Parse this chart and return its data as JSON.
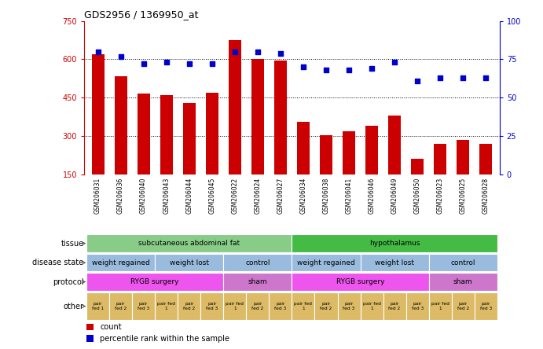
{
  "title": "GDS2956 / 1369950_at",
  "samples": [
    "GSM206031",
    "GSM206036",
    "GSM206040",
    "GSM206043",
    "GSM206044",
    "GSM206045",
    "GSM206022",
    "GSM206024",
    "GSM206027",
    "GSM206034",
    "GSM206038",
    "GSM206041",
    "GSM206046",
    "GSM206049",
    "GSM206050",
    "GSM206023",
    "GSM206025",
    "GSM206028"
  ],
  "counts": [
    620,
    535,
    465,
    460,
    430,
    468,
    675,
    600,
    595,
    355,
    305,
    320,
    340,
    380,
    210,
    270,
    285,
    270
  ],
  "percentiles": [
    80,
    77,
    72,
    73,
    72,
    72,
    80,
    80,
    79,
    70,
    68,
    68,
    69,
    73,
    61,
    63,
    63,
    63
  ],
  "ylim_left": [
    150,
    750
  ],
  "ylim_right": [
    0,
    100
  ],
  "yticks_left": [
    150,
    300,
    450,
    600,
    750
  ],
  "yticks_right": [
    0,
    25,
    50,
    75,
    100
  ],
  "bar_color": "#cc0000",
  "dot_color": "#0000cc",
  "bar_width": 0.55,
  "tissue_groups": [
    {
      "label": "subcutaneous abdominal fat",
      "start": 0,
      "end": 8,
      "color": "#88cc88"
    },
    {
      "label": "hypothalamus",
      "start": 9,
      "end": 17,
      "color": "#44bb44"
    }
  ],
  "disease_state_groups": [
    {
      "label": "weight regained",
      "start": 0,
      "end": 2,
      "color": "#99bbdd"
    },
    {
      "label": "weight lost",
      "start": 3,
      "end": 5,
      "color": "#99bbdd"
    },
    {
      "label": "control",
      "start": 6,
      "end": 8,
      "color": "#99bbdd"
    },
    {
      "label": "weight regained",
      "start": 9,
      "end": 11,
      "color": "#99bbdd"
    },
    {
      "label": "weight lost",
      "start": 12,
      "end": 14,
      "color": "#99bbdd"
    },
    {
      "label": "control",
      "start": 15,
      "end": 17,
      "color": "#99bbdd"
    }
  ],
  "protocol_groups": [
    {
      "label": "RYGB surgery",
      "start": 0,
      "end": 5,
      "color": "#ee55ee"
    },
    {
      "label": "sham",
      "start": 6,
      "end": 8,
      "color": "#cc77cc"
    },
    {
      "label": "RYGB surgery",
      "start": 9,
      "end": 14,
      "color": "#ee55ee"
    },
    {
      "label": "sham",
      "start": 15,
      "end": 17,
      "color": "#cc77cc"
    }
  ],
  "other_labels": [
    "pair\nfed 1",
    "pair\nfed 2",
    "pair\nfed 3",
    "pair fed\n1",
    "pair\nfed 2",
    "pair\nfed 3",
    "pair fed\n1",
    "pair\nfed 2",
    "pair\nfed 3",
    "pair fed\n1",
    "pair\nfed 2",
    "pair\nfed 3",
    "pair fed\n1",
    "pair\nfed 2",
    "pair\nfed 3",
    "pair fed\n1",
    "pair\nfed 2",
    "pair\nfed 3"
  ],
  "other_color": "#ddbb66",
  "row_labels": [
    "tissue",
    "disease state",
    "protocol",
    "other"
  ],
  "axis_label_color_left": "#cc0000",
  "axis_label_color_right": "#0000cc",
  "hline_values": [
    300,
    450,
    600
  ],
  "xtick_bg_color": "#cccccc",
  "legend_items": [
    {
      "color": "#cc0000",
      "label": "count"
    },
    {
      "color": "#0000cc",
      "label": "percentile rank within the sample"
    }
  ]
}
